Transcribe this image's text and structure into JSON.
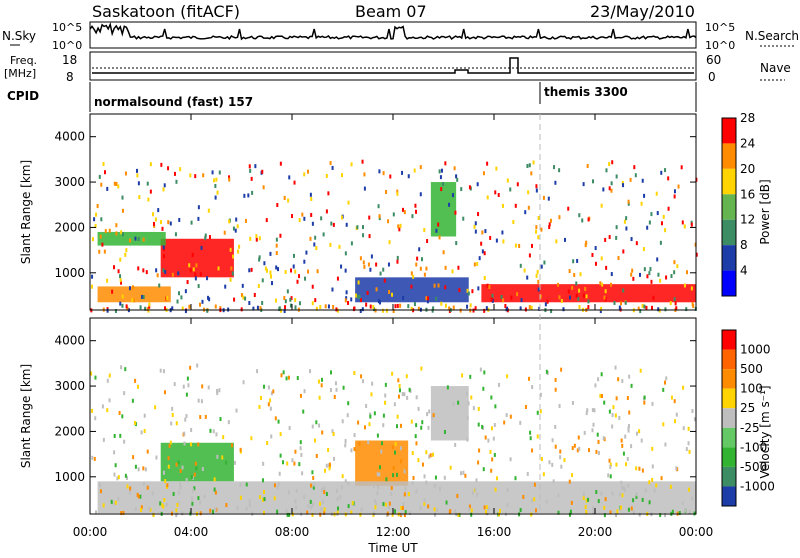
{
  "header": {
    "title": "Saskatoon (fitACF)",
    "beam": "Beam 07",
    "date": "23/May/2010"
  },
  "top_panels": {
    "nsky_label": "N.Sky",
    "nsearch_label": "N.Search",
    "nsky_ticks": [
      "10^5",
      "10^0"
    ],
    "nsearch_ticks": [
      "10^5",
      "10^0"
    ],
    "freq_label": "Freq.",
    "freq_unit": "[MHz]",
    "freq_ticks": [
      "18",
      "8"
    ],
    "nave_label": "Nave",
    "nave_ticks": [
      "60",
      "0"
    ],
    "cpid_label": "CPID",
    "cpid_modes": [
      "normalsound (fast) 157",
      "themis 3300"
    ]
  },
  "colors": {
    "red": "#ff0000",
    "orange": "#ff8c00",
    "yellow": "#ffd400",
    "green": "#32b432",
    "blue": "#1c3ca8",
    "grey": "#bebebe"
  },
  "chart_data": [
    {
      "type": "heatmap",
      "title": "Power",
      "ylabel": "Slant Range [km]",
      "xlabel": "Time UT",
      "yticks": [
        "1000",
        "2000",
        "3000",
        "4000"
      ],
      "ylim": [
        180,
        4500
      ],
      "colorbar": {
        "label": "Power [dB]",
        "ticks": [
          "4",
          "8",
          "12",
          "16",
          "20",
          "24",
          "28"
        ],
        "colors": [
          "#0000ff",
          "#1c3ca8",
          "#3c8c64",
          "#64b450",
          "#ffd400",
          "#ff8c00",
          "#ff0000"
        ]
      },
      "regions": [
        {
          "t": [
            2.8,
            5.7
          ],
          "r": [
            900,
            1750
          ],
          "level": "red"
        },
        {
          "t": [
            0.3,
            3.2
          ],
          "r": [
            350,
            700
          ],
          "level": "orange"
        },
        {
          "t": [
            10.5,
            15.0
          ],
          "r": [
            350,
            900
          ],
          "level": "blue"
        },
        {
          "t": [
            15.5,
            24.0
          ],
          "r": [
            350,
            750
          ],
          "level": "red"
        },
        {
          "t": [
            13.5,
            14.5
          ],
          "r": [
            1800,
            3000
          ],
          "level": "green"
        },
        {
          "t": [
            0.3,
            3.0
          ],
          "r": [
            1600,
            1900
          ],
          "level": "green"
        }
      ]
    },
    {
      "type": "heatmap",
      "title": "Velocity",
      "ylabel": "Slant Range [km]",
      "xlabel": "Time UT",
      "yticks": [
        "1000",
        "2000",
        "3000",
        "4000"
      ],
      "ylim": [
        180,
        4500
      ],
      "xticks": [
        "00:00",
        "04:00",
        "08:00",
        "12:00",
        "16:00",
        "20:00",
        "00:00"
      ],
      "colorbar": {
        "label": "Velocity [m s⁻¹]",
        "ticks": [
          "1000",
          "500",
          "100",
          "25",
          "-25",
          "-100",
          "-500",
          "-1000"
        ],
        "colors": [
          "#1c3ca8",
          "#3c8c64",
          "#32b432",
          "#64c864",
          "#bebebe",
          "#ffd400",
          "#ff8c00",
          "#ff6400",
          "#ff0000"
        ]
      },
      "regions": [
        {
          "t": [
            2.8,
            5.7
          ],
          "r": [
            900,
            1750
          ],
          "level": "green"
        },
        {
          "t": [
            10.5,
            12.6
          ],
          "r": [
            800,
            1800
          ],
          "level": "orange"
        },
        {
          "t": [
            0.3,
            24.0
          ],
          "r": [
            200,
            900
          ],
          "level": "grey"
        },
        {
          "t": [
            13.5,
            15.0
          ],
          "r": [
            1800,
            3000
          ],
          "level": "grey"
        }
      ]
    }
  ]
}
